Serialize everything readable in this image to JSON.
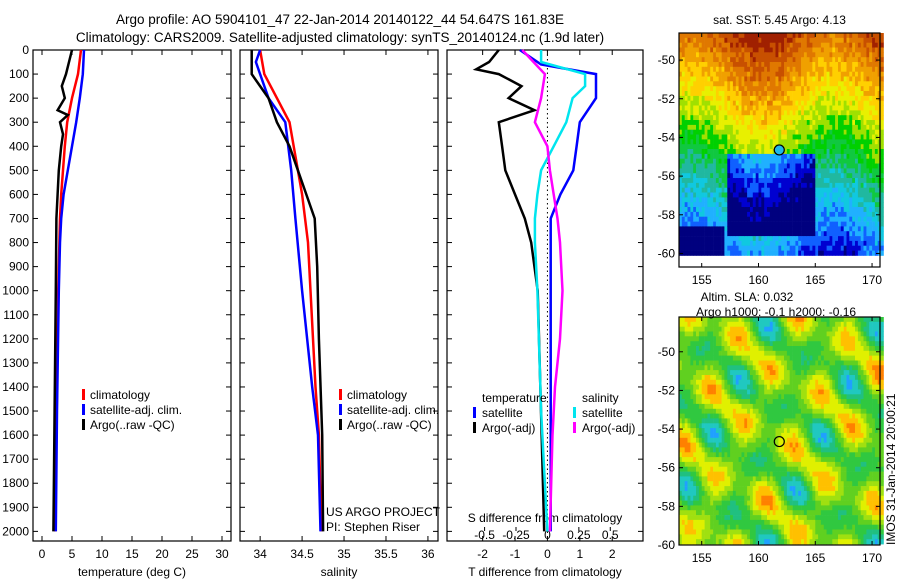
{
  "header": {
    "title_line1": "Argo profile: AO 5904101_47 22-Jan-2014 20140122_44 54.647S 161.83E",
    "title_line2": "Climatology: CARS2009. Satellite-adjusted climatology: synTS_20140124.nc (1.9d later)"
  },
  "colors": {
    "climatology": "#ff0000",
    "satellite": "#0000ff",
    "argo": "#000000",
    "sal_satellite": "#00e5ee",
    "sal_argo": "#ff00ff"
  },
  "chart_data": [
    {
      "id": "temperature",
      "type": "line",
      "xlabel": "temperature (deg C)",
      "ylabel": "",
      "xlim": [
        -1.5,
        31.5
      ],
      "ylim": [
        0,
        2040
      ],
      "xticks": [
        0,
        5,
        10,
        15,
        20,
        25,
        30
      ],
      "yticks": [
        0,
        100,
        200,
        300,
        400,
        500,
        600,
        700,
        800,
        900,
        1000,
        1100,
        1200,
        1300,
        1400,
        1500,
        1600,
        1700,
        1800,
        1900,
        2000
      ],
      "legend": {
        "placement": "lower-center",
        "entries": [
          "climatology",
          "satellite-adj. clim.",
          "Argo(..raw -QC)"
        ]
      },
      "series": [
        {
          "name": "climatology",
          "color": "#ff0000",
          "depth": [
            0,
            100,
            200,
            300,
            400,
            500,
            600,
            700,
            800,
            1000,
            1400,
            2000
          ],
          "values": [
            6.5,
            6.0,
            5.0,
            4.2,
            3.8,
            3.5,
            3.2,
            3.0,
            2.9,
            2.7,
            2.5,
            2.2
          ]
        },
        {
          "name": "satellite-adj. clim.",
          "color": "#0000ff",
          "depth": [
            0,
            100,
            200,
            300,
            400,
            500,
            600,
            700,
            800,
            1000,
            1500,
            2000
          ],
          "values": [
            7.0,
            6.8,
            6.3,
            5.7,
            5.0,
            4.3,
            3.6,
            3.2,
            3.0,
            2.8,
            2.5,
            2.3
          ]
        },
        {
          "name": "Argo(..raw -QC)",
          "color": "#000000",
          "depth": [
            0,
            50,
            100,
            150,
            200,
            250,
            270,
            300,
            350,
            400,
            500,
            600,
            700,
            1000,
            1500,
            2000
          ],
          "values": [
            5.0,
            4.5,
            4.0,
            3.3,
            3.8,
            2.6,
            4.3,
            3.0,
            3.5,
            3.2,
            2.8,
            2.6,
            2.4,
            2.3,
            2.1,
            1.9
          ]
        }
      ]
    },
    {
      "id": "salinity",
      "type": "line",
      "xlabel": "salinity",
      "xlim": [
        33.76,
        36.12
      ],
      "ylim": [
        0,
        2040
      ],
      "xticks": [
        34,
        34.5,
        35,
        35.5,
        36
      ],
      "legend": {
        "placement": "lower-center",
        "entries": [
          "climatology",
          "satellite-adj. clim.",
          "Argo(..raw -QC)"
        ]
      },
      "annotation": [
        "US ARGO PROJECT",
        "PI: Stephen Riser"
      ],
      "series": [
        {
          "name": "climatology",
          "color": "#ff0000",
          "depth": [
            0,
            100,
            200,
            300,
            400,
            600,
            800,
            1000,
            1400,
            1600,
            2000
          ],
          "values": [
            34.0,
            34.05,
            34.2,
            34.35,
            34.4,
            34.5,
            34.57,
            34.6,
            34.66,
            34.7,
            34.73
          ]
        },
        {
          "name": "satellite-adj. clim.",
          "color": "#0000ff",
          "depth": [
            0,
            50,
            100,
            200,
            300,
            500,
            700,
            1000,
            1400,
            1600,
            2000
          ],
          "values": [
            34.0,
            33.95,
            34.0,
            34.1,
            34.3,
            34.37,
            34.42,
            34.5,
            34.62,
            34.69,
            34.72
          ]
        },
        {
          "name": "Argo(..raw -QC)",
          "color": "#000000",
          "depth": [
            0,
            100,
            200,
            300,
            400,
            500,
            600,
            700,
            900,
            1200,
            1600,
            2000
          ],
          "values": [
            33.9,
            33.9,
            34.1,
            34.2,
            34.35,
            34.45,
            34.55,
            34.65,
            34.68,
            34.7,
            34.74,
            34.75
          ]
        }
      ]
    },
    {
      "id": "difference",
      "type": "line",
      "xlabel": "T difference from climatology",
      "x2label": "S difference from climatology",
      "xlim": [
        -3.1,
        2.95
      ],
      "ylim": [
        0,
        2040
      ],
      "xticks": [
        -2,
        -1,
        0,
        1,
        2
      ],
      "x2ticks": [
        -0.5,
        -0.25,
        0,
        0.25,
        0.5
      ],
      "x2ticklabels": [
        "-0.5",
        "-0.25",
        "0",
        "0.25",
        "0.5"
      ],
      "legend": {
        "placement": "lower-center",
        "temperature_title": "temperature",
        "salinity_title": "salinity",
        "entries": [
          "satellite",
          "Argo(-adj)",
          "satellite",
          "Argo(-adj)"
        ]
      },
      "series": [
        {
          "name": "T satellite",
          "color": "#0000ff",
          "units": "T",
          "depth": [
            0,
            60,
            100,
            200,
            300,
            400,
            500,
            600,
            700,
            800,
            1000,
            2000
          ],
          "values": [
            -0.85,
            -0.2,
            1.5,
            1.5,
            1.0,
            0.9,
            0.8,
            0.4,
            0.1,
            0.1,
            0.1,
            0.1
          ]
        },
        {
          "name": "T Argo(-adj)",
          "color": "#000000",
          "units": "T",
          "depth": [
            0,
            50,
            80,
            100,
            150,
            200,
            250,
            300,
            400,
            500,
            600,
            700,
            800,
            1000,
            1500,
            2000
          ],
          "values": [
            -1.5,
            -1.8,
            -2.2,
            -1.5,
            -0.8,
            -1.2,
            -0.4,
            -1.5,
            -1.4,
            -1.3,
            -1.0,
            -0.7,
            -0.5,
            -0.3,
            -0.2,
            -0.1
          ]
        },
        {
          "name": "S satellite",
          "color": "#00e5ee",
          "units": "S",
          "depth": [
            0,
            50,
            100,
            150,
            200,
            300,
            400,
            500,
            600,
            700,
            800,
            1000,
            1500,
            2000
          ],
          "values": [
            -0.05,
            -0.05,
            0.3,
            0.3,
            0.2,
            0.15,
            0.05,
            -0.05,
            -0.08,
            -0.1,
            -0.1,
            -0.08,
            -0.05,
            0.0
          ]
        },
        {
          "name": "S Argo(-adj)",
          "color": "#ff00ff",
          "units": "S",
          "depth": [
            0,
            100,
            200,
            300,
            400,
            500,
            600,
            700,
            800,
            1000,
            1200,
            1400,
            1600,
            2000
          ],
          "values": [
            -0.2,
            -0.02,
            -0.05,
            -0.1,
            0.0,
            0.02,
            0.05,
            0.08,
            0.1,
            0.12,
            0.1,
            0.06,
            0.04,
            0.02
          ]
        }
      ]
    },
    {
      "id": "sst_map",
      "type": "heatmap",
      "title": "sat. SST: 5.45 Argo: 4.13",
      "xlim": [
        153,
        170.7
      ],
      "ylim": [
        -60.7,
        -48.6
      ],
      "xticks": [
        155,
        160,
        165,
        170
      ],
      "yticks": [
        -50,
        -52,
        -54,
        -56,
        -58,
        -60
      ],
      "marker": {
        "lon": 161.83,
        "lat": -54.647
      }
    },
    {
      "id": "sla_map",
      "type": "heatmap",
      "title": "Altim. SLA: 0.032",
      "subtitle": "Argo h1000: -0.1 h2000: -0.16",
      "xlim": [
        153,
        170.7
      ],
      "ylim": [
        -60,
        -48.2
      ],
      "xticks": [
        155,
        160,
        165,
        170
      ],
      "yticks": [
        -50,
        -52,
        -54,
        -56,
        -58,
        -60
      ],
      "marker": {
        "lon": 161.83,
        "lat": -54.647
      }
    }
  ],
  "footer": {
    "stamp": "IMOS 31-Jan-2014 20:00:21"
  }
}
